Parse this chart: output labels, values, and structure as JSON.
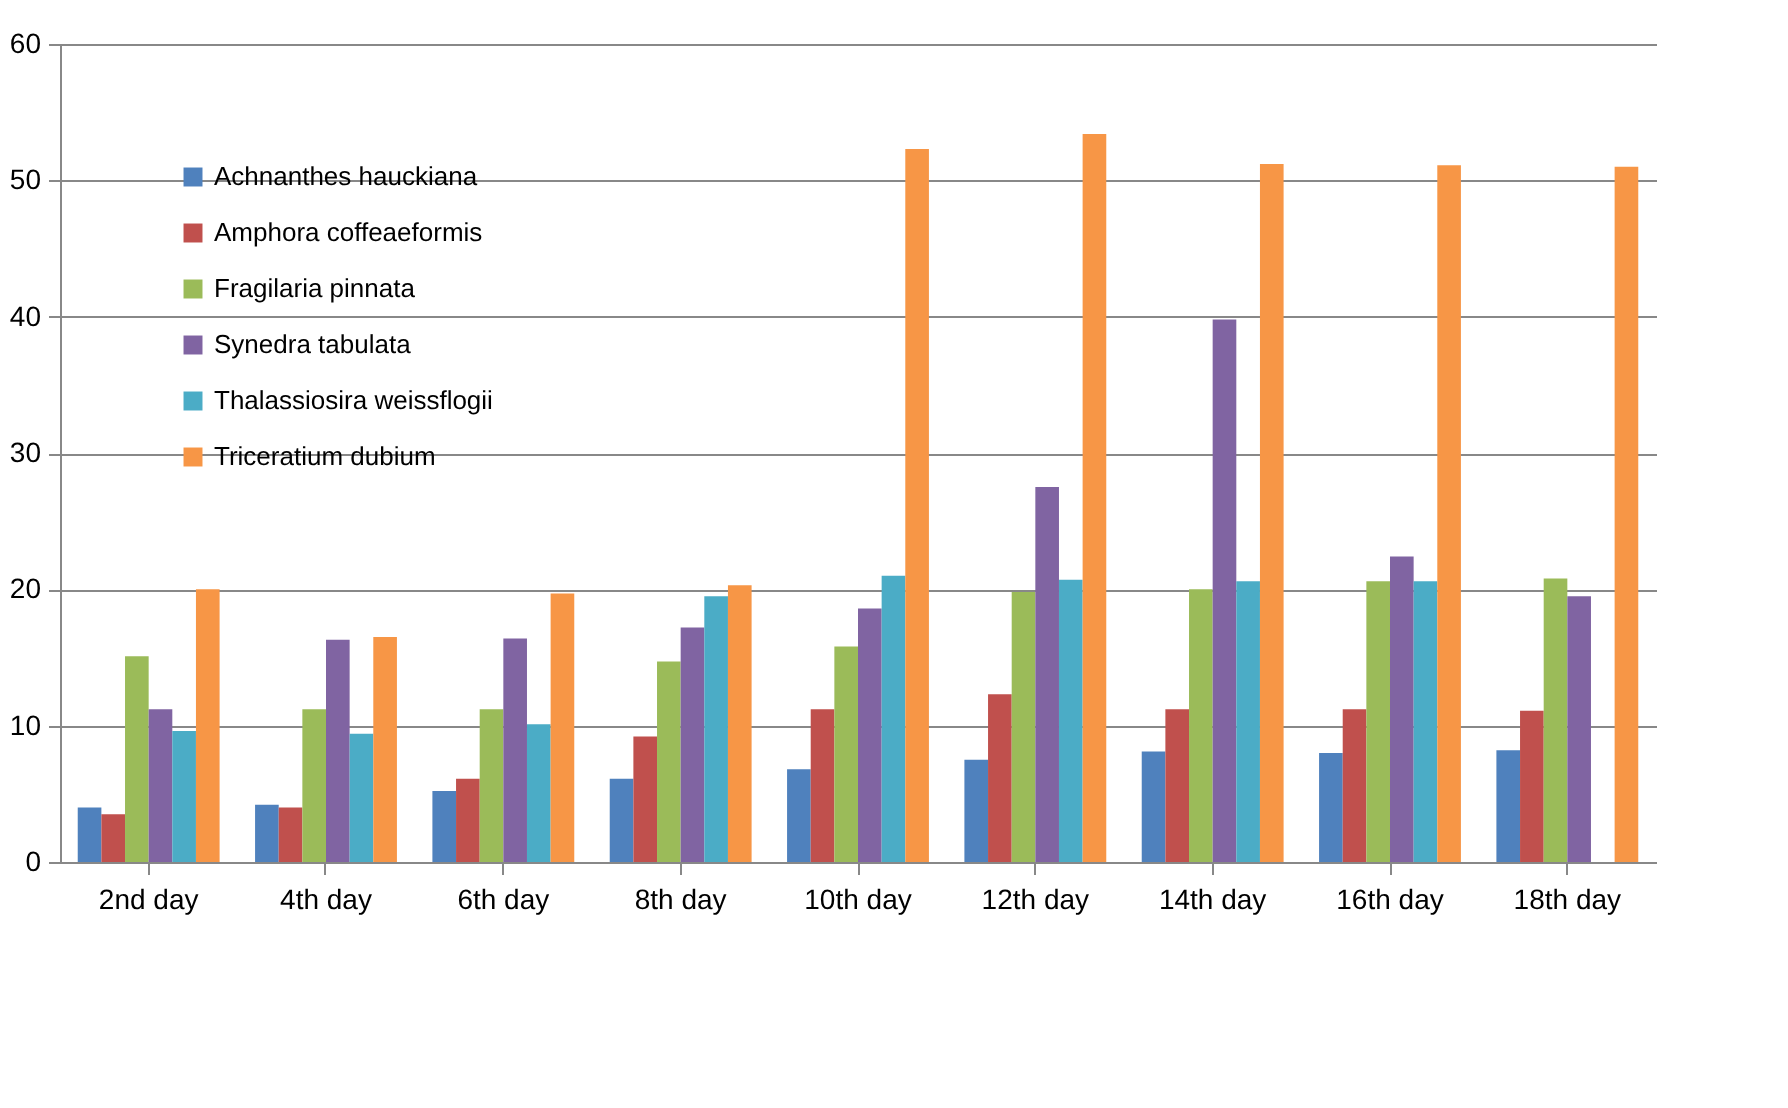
{
  "chart_data": {
    "type": "bar",
    "categories": [
      "2nd day",
      "4th day",
      "6th day",
      "8th day",
      "10th day",
      "12th day",
      "14th day",
      "16th day",
      "18th day"
    ],
    "series": [
      {
        "name": "Achnanthes hauckiana",
        "color": "#4f81bd",
        "values": [
          4.0,
          4.2,
          5.2,
          6.1,
          6.8,
          7.5,
          8.1,
          8.0,
          8.2
        ]
      },
      {
        "name": "Amphora coffeaeformis",
        "color": "#c0504d",
        "values": [
          3.5,
          4.0,
          6.1,
          9.2,
          11.2,
          12.3,
          11.2,
          11.2,
          11.1
        ]
      },
      {
        "name": "Fragilaria pinnata",
        "color": "#9bbb59",
        "values": [
          15.1,
          11.2,
          11.2,
          14.7,
          15.8,
          19.8,
          20.0,
          20.6,
          20.8
        ]
      },
      {
        "name": "Synedra tabulata",
        "color": "#8064a2",
        "values": [
          11.2,
          16.3,
          16.4,
          17.2,
          18.6,
          27.5,
          39.8,
          22.4,
          19.5
        ]
      },
      {
        "name": "Thalassiosira weissflogii",
        "color": "#4bacc6",
        "values": [
          9.6,
          9.4,
          10.1,
          19.5,
          21.0,
          20.7,
          20.6,
          20.6,
          null
        ]
      },
      {
        "name": "Triceratium dubium",
        "color": "#f79646",
        "values": [
          20.0,
          16.5,
          19.7,
          20.3,
          52.3,
          53.4,
          51.2,
          51.1,
          51.0
        ]
      }
    ],
    "ylim": [
      0,
      60
    ],
    "yticks": [
      0,
      10,
      20,
      30,
      40,
      50,
      60
    ],
    "grid": "y",
    "legend": "top left"
  }
}
